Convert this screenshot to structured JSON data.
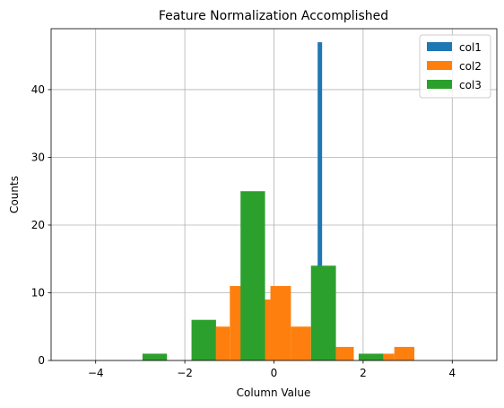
{
  "chart_data": {
    "type": "bar",
    "title": "Feature Normalization Accomplished",
    "xlabel": "Column Value",
    "ylabel": "Counts",
    "xlim": [
      -5,
      5
    ],
    "ylim": [
      0,
      49
    ],
    "xticks": [
      -4,
      -2,
      0,
      2,
      4
    ],
    "xtick_labels": [
      "−4",
      "−2",
      "0",
      "2",
      "4"
    ],
    "yticks": [
      0,
      10,
      20,
      30,
      40
    ],
    "ytick_labels": [
      "0",
      "10",
      "20",
      "30",
      "40"
    ],
    "grid": true,
    "legend_position": "top-right",
    "series": [
      {
        "name": "col1",
        "color": "#1f77b4",
        "bins": [
          {
            "x0": 0.98,
            "x1": 1.08,
            "count": 47
          }
        ]
      },
      {
        "name": "col2",
        "color": "#ff7f0e",
        "bins": [
          {
            "x0": -1.3,
            "x1": -0.99,
            "count": 5
          },
          {
            "x0": -0.99,
            "x1": -0.69,
            "count": 11
          },
          {
            "x0": -0.69,
            "x1": -0.38,
            "count": 0
          },
          {
            "x0": -0.38,
            "x1": -0.08,
            "count": 9
          },
          {
            "x0": -0.08,
            "x1": 0.38,
            "count": 11
          },
          {
            "x0": 0.38,
            "x1": 0.83,
            "count": 5
          },
          {
            "x0": 0.83,
            "x1": 1.39,
            "count": 0
          },
          {
            "x0": 1.39,
            "x1": 1.79,
            "count": 2
          },
          {
            "x0": 1.79,
            "x1": 2.4,
            "count": 0
          },
          {
            "x0": 2.4,
            "x1": 2.7,
            "count": 1
          },
          {
            "x0": 2.7,
            "x1": 3.15,
            "count": 2
          }
        ]
      },
      {
        "name": "col3",
        "color": "#2ca02c",
        "bins": [
          {
            "x0": -2.95,
            "x1": -2.4,
            "count": 1
          },
          {
            "x0": -2.4,
            "x1": -1.85,
            "count": 0
          },
          {
            "x0": -1.85,
            "x1": -1.3,
            "count": 6
          },
          {
            "x0": -1.3,
            "x1": -0.75,
            "count": 0
          },
          {
            "x0": -0.75,
            "x1": -0.2,
            "count": 25
          },
          {
            "x0": -0.2,
            "x1": 0.35,
            "count": 0
          },
          {
            "x0": 0.35,
            "x1": 0.83,
            "count": 0
          },
          {
            "x0": 0.83,
            "x1": 1.39,
            "count": 14
          },
          {
            "x0": 1.39,
            "x1": 1.9,
            "count": 0
          },
          {
            "x0": 1.9,
            "x1": 2.45,
            "count": 1
          }
        ]
      }
    ]
  }
}
